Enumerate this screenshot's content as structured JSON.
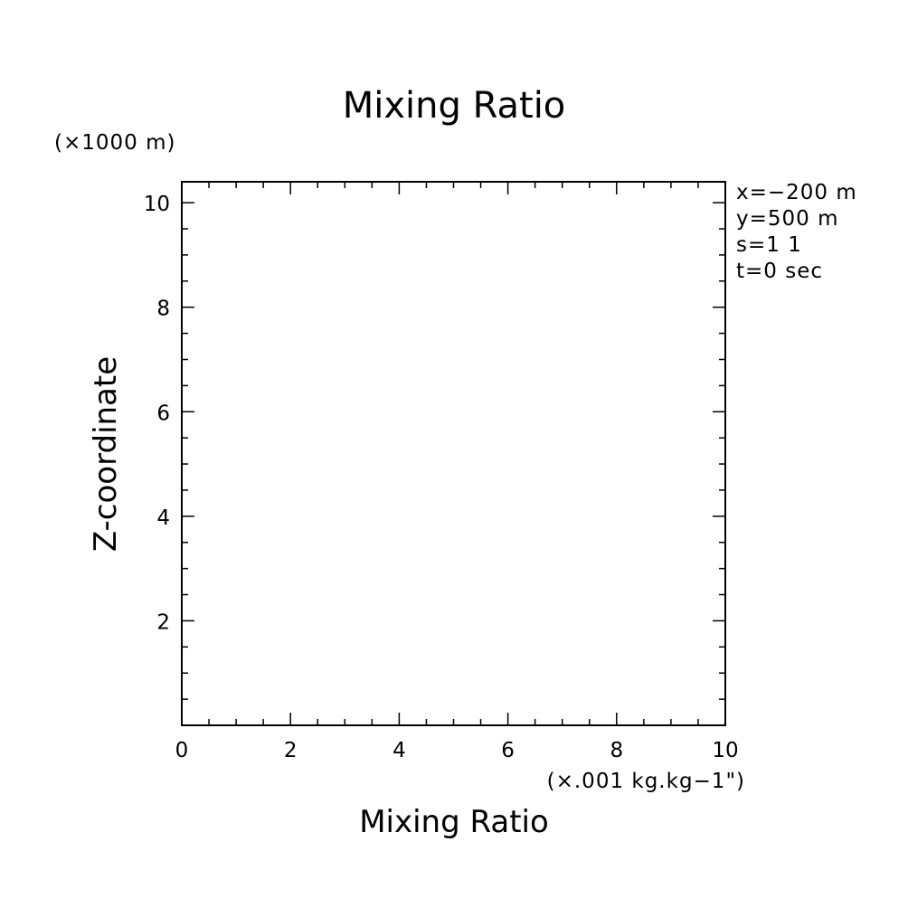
{
  "chart_data": {
    "type": "line",
    "title": "Mixing Ratio",
    "xlabel": "Mixing Ratio",
    "ylabel": "Z-coordinate",
    "x_unit": "(×.001 kg.kg−1\")",
    "y_unit": "(×1000 m)",
    "xlim": [
      0,
      10
    ],
    "ylim": [
      0,
      10.4
    ],
    "x_ticks": [
      0,
      2,
      4,
      6,
      8,
      10
    ],
    "y_ticks": [
      2,
      4,
      6,
      8,
      10
    ],
    "x_minor_step": 0.5,
    "y_minor_step": 0.5,
    "grid": false,
    "series": []
  },
  "info": [
    "x=−200 m",
    "y=500 m",
    "s=1 1",
    "t=0 sec"
  ]
}
